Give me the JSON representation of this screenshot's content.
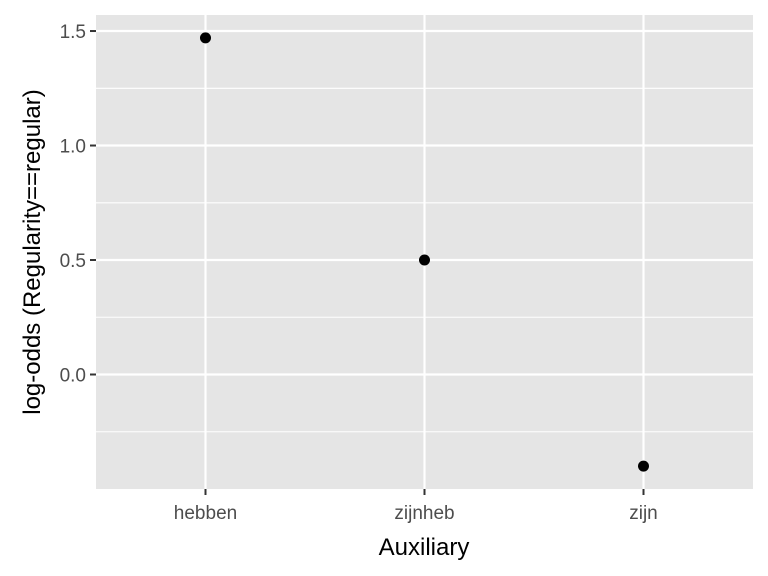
{
  "chart_data": {
    "type": "scatter",
    "title": "",
    "xlabel": "Auxiliary",
    "ylabel": "log-odds (Regularity==regular)",
    "categories": [
      "hebben",
      "zijnheb",
      "zijn"
    ],
    "values": [
      1.47,
      0.5,
      -0.4
    ],
    "ylim": [
      -0.5,
      1.57
    ],
    "yticks": [
      0.0,
      0.5,
      1.0,
      1.5
    ],
    "ytick_labels": [
      "0.0",
      "0.5",
      "1.0",
      "1.5"
    ],
    "grid": true,
    "legend": "none",
    "colors": {
      "panel": "#e5e5e5",
      "grid": "#ffffff",
      "point": "#000000",
      "tick": "#333333"
    }
  }
}
